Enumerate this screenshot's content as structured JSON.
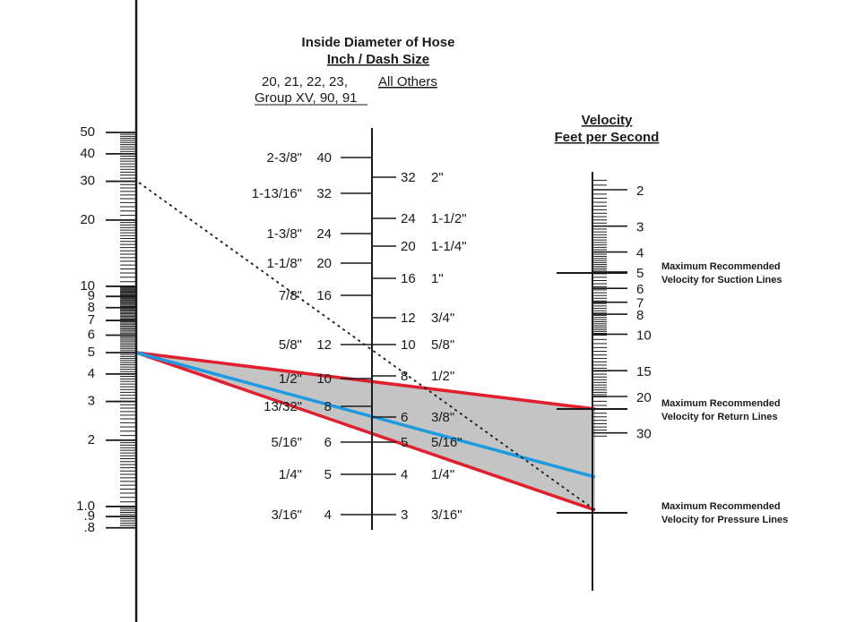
{
  "title": {
    "line1": "Inside Diameter of Hose",
    "line2": "Inch / Dash Size",
    "group_label_line1": "20, 21, 22, 23,",
    "group_label_line2": "Group XV, 90, 91",
    "others_label": "All Others"
  },
  "velocity_title": {
    "line1": "Velocity",
    "line2": "Feet per Second"
  },
  "flow_scale_labels": [
    "50",
    "40",
    "30",
    "20",
    "10",
    "9",
    "8",
    "7",
    "6",
    "5",
    "4",
    "3",
    "2",
    "1.0",
    ".9",
    ".8"
  ],
  "hose_left": [
    {
      "inch": "2-3/8\"",
      "dash": "40"
    },
    {
      "inch": "1-13/16\"",
      "dash": "32"
    },
    {
      "inch": "1-3/8\"",
      "dash": "24"
    },
    {
      "inch": "1-1/8\"",
      "dash": "20"
    },
    {
      "inch": "7/8\"",
      "dash": "16"
    },
    {
      "inch": "5/8\"",
      "dash": "12"
    },
    {
      "inch": "1/2\"",
      "dash": "10"
    },
    {
      "inch": "13/32\"",
      "dash": "8"
    },
    {
      "inch": "5/16\"",
      "dash": "6"
    },
    {
      "inch": "1/4\"",
      "dash": "5"
    },
    {
      "inch": "3/16\"",
      "dash": "4"
    }
  ],
  "hose_right": [
    {
      "dash": "32",
      "inch": "2\""
    },
    {
      "dash": "24",
      "inch": "1-1/2\""
    },
    {
      "dash": "20",
      "inch": "1-1/4\""
    },
    {
      "dash": "16",
      "inch": "1\""
    },
    {
      "dash": "12",
      "inch": "3/4\""
    },
    {
      "dash": "10",
      "inch": "5/8\""
    },
    {
      "dash": "8",
      "inch": "1/2\""
    },
    {
      "dash": "6",
      "inch": "3/8\""
    },
    {
      "dash": "5",
      "inch": "5/16\""
    },
    {
      "dash": "4",
      "inch": "1/4\""
    },
    {
      "dash": "3",
      "inch": "3/16\""
    }
  ],
  "velocity_labels": [
    "2",
    "3",
    "4",
    "5",
    "6",
    "7",
    "8",
    "10",
    "15",
    "20",
    "30"
  ],
  "annotations": {
    "suction": [
      "Maximum Recommended",
      "Velocity for Suction Lines"
    ],
    "return": [
      "Maximum Recommended",
      "Velocity for Return Lines"
    ],
    "pressure": [
      "Maximum Recommended",
      "Velocity for Pressure Lines"
    ]
  },
  "colors": {
    "red_line": "#e0202e",
    "blue_line": "#1e9be0",
    "shaded_region": "#c4c4c4",
    "ink": "#1a1a1a"
  }
}
